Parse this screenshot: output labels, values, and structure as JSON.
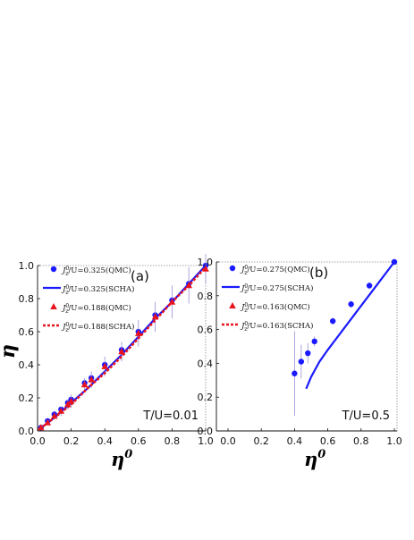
{
  "chart_data": [
    {
      "type": "scatter",
      "panel_label": "(a)",
      "annotation": "T/U=0.01",
      "xlabel": "η",
      "xlabel_sup": "0",
      "ylabel": "η",
      "xlim": [
        0,
        1
      ],
      "ylim": [
        0,
        1
      ],
      "xticks": [
        "0.0",
        "0.2",
        "0.4",
        "0.6",
        "0.8",
        "1.0"
      ],
      "yticks": [
        "0.0",
        "0.2",
        "0.4",
        "0.6",
        "0.8",
        "1.0"
      ],
      "grid": false,
      "legend_placement": "top-left",
      "series": [
        {
          "name": "J0/U=0.325(QMC)",
          "legend": {
            "base": "J",
            "sup": "0",
            "sub": "z",
            "rest": "/U=0.325(QMC)"
          },
          "kind": "points",
          "marker": "circle",
          "color": "#1a1aff",
          "x": [
            0.02,
            0.06,
            0.1,
            0.14,
            0.18,
            0.2,
            0.28,
            0.32,
            0.4,
            0.5,
            0.6,
            0.7,
            0.8,
            0.9,
            1.0
          ],
          "y": [
            0.02,
            0.06,
            0.1,
            0.13,
            0.17,
            0.19,
            0.29,
            0.32,
            0.4,
            0.49,
            0.6,
            0.7,
            0.79,
            0.89,
            1.0
          ],
          "err": [
            0,
            0,
            0,
            0,
            0,
            0,
            0,
            0,
            0,
            0,
            0,
            0,
            0,
            0,
            0
          ]
        },
        {
          "name": "J0/U=0.325(SCHA)",
          "legend": {
            "base": "J",
            "sup": "0",
            "sub": "z",
            "rest": "/U=0.325(SCHA)"
          },
          "kind": "line",
          "style": "solid",
          "color": "#1a1aff",
          "x": [
            0.01,
            0.1,
            0.2,
            0.3,
            0.4,
            0.5,
            0.6,
            0.7,
            0.8,
            0.9,
            1.0
          ],
          "y": [
            0.01,
            0.08,
            0.17,
            0.26,
            0.36,
            0.46,
            0.57,
            0.68,
            0.78,
            0.89,
            1.0
          ]
        },
        {
          "name": "J0/U=0.188(QMC)",
          "legend": {
            "base": "J",
            "sup": "0",
            "sub": "z",
            "rest": "/U=0.188(QMC)"
          },
          "kind": "points",
          "marker": "triangle",
          "color": "#e8141e",
          "x": [
            0.02,
            0.06,
            0.1,
            0.14,
            0.18,
            0.2,
            0.28,
            0.32,
            0.4,
            0.5,
            0.6,
            0.7,
            0.8,
            0.9,
            1.0
          ],
          "y": [
            0.02,
            0.05,
            0.09,
            0.12,
            0.16,
            0.18,
            0.28,
            0.31,
            0.39,
            0.48,
            0.59,
            0.69,
            0.78,
            0.88,
            0.98
          ],
          "err": [
            0,
            0,
            0.02,
            0.03,
            0.03,
            0.04,
            0.04,
            0.05,
            0.06,
            0.06,
            0.08,
            0.09,
            0.1,
            0.11,
            0.09
          ]
        },
        {
          "name": "J0/U=0.188(SCHA)",
          "legend": {
            "base": "J",
            "sup": "0",
            "sub": "z",
            "rest": "/U=0.188(SCHA)"
          },
          "kind": "line",
          "style": "dashed",
          "color": "#e8141e",
          "x": [
            0.01,
            0.1,
            0.2,
            0.3,
            0.4,
            0.5,
            0.6,
            0.7,
            0.8,
            0.9,
            1.0
          ],
          "y": [
            0.01,
            0.08,
            0.16,
            0.26,
            0.35,
            0.45,
            0.56,
            0.67,
            0.78,
            0.88,
            0.99
          ]
        }
      ]
    },
    {
      "type": "scatter",
      "panel_label": "(b)",
      "annotation": "T/U=0.5",
      "xlabel": "η",
      "xlabel_sup": "0",
      "ylabel": "",
      "xlim": [
        0,
        1
      ],
      "ylim": [
        0,
        1
      ],
      "xticks": [
        "0.0",
        "0.2",
        "0.4",
        "0.6",
        "0.8",
        "1.0"
      ],
      "yticks": [
        "0.0",
        "0.2",
        "0.4",
        "0.6",
        "0.8",
        "1.0"
      ],
      "grid": false,
      "legend_placement": "top-left",
      "series": [
        {
          "name": "J0/U=0.275(QMC)",
          "legend": {
            "base": "J",
            "sup": "0",
            "sub": "z",
            "rest": "/U=0.275(QMC)"
          },
          "kind": "points",
          "marker": "circle",
          "color": "#1a1aff",
          "x": [
            0.4,
            0.44,
            0.48,
            0.52,
            0.63,
            0.74,
            0.85,
            1.0
          ],
          "y": [
            0.34,
            0.41,
            0.46,
            0.53,
            0.65,
            0.75,
            0.86,
            1.0
          ],
          "err": [
            0.25,
            0.1,
            0.06,
            0.03,
            0.02,
            0.02,
            0.02,
            0.01
          ]
        },
        {
          "name": "J0/U=0.275(SCHA)",
          "legend": {
            "base": "J",
            "sup": "0",
            "sub": "z",
            "rest": "/U=0.275(SCHA)"
          },
          "kind": "line",
          "style": "solid",
          "color": "#1a1aff",
          "x": [
            0.47,
            0.5,
            0.55,
            0.6,
            0.7,
            0.8,
            0.9,
            1.0
          ],
          "y": [
            0.25,
            0.32,
            0.41,
            0.48,
            0.61,
            0.74,
            0.87,
            1.0
          ]
        },
        {
          "name": "J0/U=0.163(QMC)",
          "legend": {
            "base": "J",
            "sup": "0",
            "sub": "z",
            "rest": "/U=0.163(QMC)"
          },
          "kind": "points",
          "marker": "triangle",
          "color": "#e8141e",
          "x": [],
          "y": [],
          "err": []
        },
        {
          "name": "J0/U=0.163(SCHA)",
          "legend": {
            "base": "J",
            "sup": "0",
            "sub": "z",
            "rest": "/U=0.163(SCHA)"
          },
          "kind": "line",
          "style": "dashed",
          "color": "#e8141e",
          "x": [],
          "y": []
        }
      ]
    }
  ]
}
